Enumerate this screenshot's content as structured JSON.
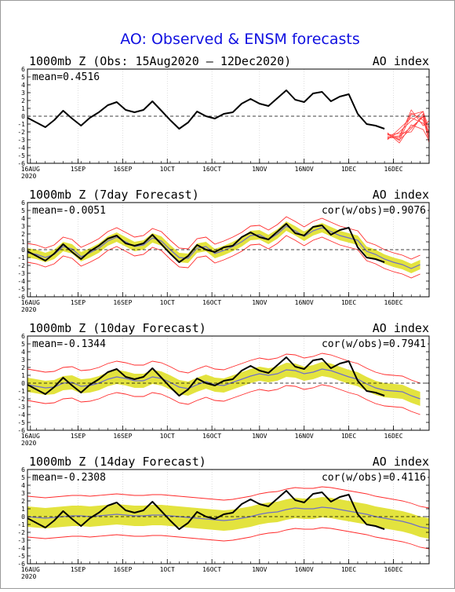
{
  "title": "AO: Observed & ENSM forecasts",
  "chart_data": [
    {
      "type": "line",
      "panel_title": "1000mb Z (Obs: 15Aug2020 – 12Dec2020)",
      "index_label": "AO index",
      "mean_label": "mean=0.4516",
      "cor_label": "",
      "yticks": [
        6,
        5,
        4,
        3,
        2,
        1,
        0,
        -1,
        -2,
        -3,
        -4,
        -5,
        -6
      ],
      "ylim": [
        -6,
        6
      ],
      "xlim_day": [
        0,
        135
      ],
      "xtick_labels": [
        "16AUG",
        "1SEP",
        "16SEP",
        "1OCT",
        "16OCT",
        "1NOV",
        "16NOV",
        "1DEC",
        "16DEC"
      ],
      "xtick_days": [
        1,
        17,
        32,
        47,
        62,
        78,
        93,
        108,
        123
      ],
      "year_label": "2020",
      "obs_x": [
        0,
        3,
        6,
        9,
        12,
        15,
        18,
        21,
        24,
        27,
        30,
        33,
        36,
        39,
        42,
        45,
        48,
        51,
        54,
        57,
        60,
        63,
        66,
        69,
        72,
        75,
        78,
        81,
        84,
        87,
        90,
        93,
        96,
        99,
        102,
        105,
        108,
        111,
        114,
        117,
        120
      ],
      "obs_y": [
        -0.2,
        -0.8,
        -1.4,
        -0.5,
        0.7,
        -0.3,
        -1.2,
        -0.2,
        0.5,
        1.4,
        1.8,
        0.8,
        0.5,
        0.8,
        1.9,
        0.7,
        -0.5,
        -1.6,
        -0.8,
        0.6,
        0.0,
        -0.3,
        0.3,
        0.5,
        1.6,
        2.2,
        1.6,
        1.3,
        2.3,
        3.3,
        2.1,
        1.8,
        2.9,
        3.1,
        1.9,
        2.5,
        2.8,
        0.3,
        -1.0,
        -1.2,
        -1.6
      ],
      "forecast_members": [
        {
          "x": [
            121,
            125,
            129,
            133,
            135
          ],
          "y": [
            -2.3,
            -3.0,
            -1.6,
            0.0,
            -2.2
          ]
        },
        {
          "x": [
            121,
            125,
            129,
            133,
            135
          ],
          "y": [
            -2.6,
            -2.5,
            0.4,
            -0.5,
            -2.7
          ]
        },
        {
          "x": [
            121,
            125,
            129,
            133,
            135
          ],
          "y": [
            -2.9,
            -2.0,
            -0.6,
            0.6,
            -1.6
          ]
        },
        {
          "x": [
            121,
            125,
            129,
            133,
            135
          ],
          "y": [
            -2.1,
            -3.4,
            -1.1,
            -1.7,
            -3.1
          ]
        },
        {
          "x": [
            121,
            125,
            129,
            133,
            135
          ],
          "y": [
            -2.7,
            -2.8,
            0.8,
            -1.2,
            -0.6
          ]
        },
        {
          "x": [
            121,
            125,
            129,
            133,
            135
          ],
          "y": [
            -2.4,
            -2.2,
            -2.0,
            0.3,
            -2.9
          ]
        },
        {
          "x": [
            121,
            125,
            129,
            133,
            135
          ],
          "y": [
            -3.0,
            -1.6,
            -0.2,
            -0.9,
            -1.9
          ]
        },
        {
          "x": [
            121,
            125,
            129,
            133,
            135
          ],
          "y": [
            -2.2,
            -3.1,
            0.2,
            0.6,
            -2.4
          ]
        },
        {
          "x": [
            121,
            125,
            129,
            133,
            135
          ],
          "y": [
            -2.8,
            -2.6,
            -1.4,
            -0.1,
            -3.4
          ]
        }
      ]
    },
    {
      "type": "line",
      "panel_title": "1000mb Z (7day Forecast)",
      "index_label": "AO index",
      "mean_label": "mean=-0.0051",
      "cor_label": "cor(w/obs)=0.9076",
      "yticks": [
        6,
        5,
        4,
        3,
        2,
        1,
        0,
        -1,
        -2,
        -3,
        -4,
        -5,
        -6
      ],
      "ylim": [
        -6,
        6
      ],
      "xlim_day": [
        0,
        135
      ],
      "xtick_labels": [
        "16AUG",
        "1SEP",
        "16SEP",
        "1OCT",
        "16OCT",
        "1NOV",
        "16NOV",
        "1DEC",
        "16DEC"
      ],
      "xtick_days": [
        1,
        17,
        32,
        47,
        62,
        78,
        93,
        108,
        123
      ],
      "year_label": "2020",
      "obs_x": [
        0,
        3,
        6,
        9,
        12,
        15,
        18,
        21,
        24,
        27,
        30,
        33,
        36,
        39,
        42,
        45,
        48,
        51,
        54,
        57,
        60,
        63,
        66,
        69,
        72,
        75,
        78,
        81,
        84,
        87,
        90,
        93,
        96,
        99,
        102,
        105,
        108,
        111,
        114,
        117,
        120
      ],
      "obs_y": [
        -0.2,
        -0.8,
        -1.4,
        -0.5,
        0.7,
        -0.3,
        -1.2,
        -0.2,
        0.5,
        1.4,
        1.8,
        0.8,
        0.5,
        0.8,
        1.9,
        0.7,
        -0.5,
        -1.6,
        -0.8,
        0.6,
        0.0,
        -0.3,
        0.3,
        0.5,
        1.6,
        2.2,
        1.6,
        1.3,
        2.3,
        3.3,
        2.1,
        1.8,
        2.9,
        3.1,
        1.9,
        2.5,
        2.8,
        0.3,
        -1.0,
        -1.2,
        -1.6
      ],
      "ensm_x": [
        0,
        3,
        6,
        9,
        12,
        15,
        18,
        21,
        24,
        27,
        30,
        33,
        36,
        39,
        42,
        45,
        48,
        51,
        54,
        57,
        60,
        63,
        66,
        69,
        72,
        75,
        78,
        81,
        84,
        87,
        90,
        93,
        96,
        99,
        102,
        105,
        108,
        111,
        114,
        117,
        120,
        123,
        126,
        129,
        132
      ],
      "ensm_y": [
        -0.4,
        -0.6,
        -1.0,
        -0.6,
        0.4,
        0.1,
        -0.9,
        -0.4,
        0.2,
        1.1,
        1.6,
        1.0,
        0.4,
        0.6,
        1.5,
        1.1,
        0.0,
        -1.0,
        -1.1,
        0.2,
        0.4,
        -0.5,
        -0.1,
        0.4,
        1.0,
        1.8,
        1.9,
        1.3,
        2.0,
        3.0,
        2.4,
        1.7,
        2.4,
        2.8,
        2.3,
        1.8,
        1.5,
        1.2,
        -0.2,
        -0.6,
        -1.2,
        -1.6,
        -1.9,
        -2.4,
        -1.9
      ],
      "spread": 0.6,
      "envelope": 1.2
    },
    {
      "type": "line",
      "panel_title": "1000mb Z (10day Forecast)",
      "index_label": "AO index",
      "mean_label": "mean=-0.1344",
      "cor_label": "cor(w/obs)=0.7941",
      "yticks": [
        6,
        5,
        4,
        3,
        2,
        1,
        0,
        -1,
        -2,
        -3,
        -4,
        -5,
        -6
      ],
      "ylim": [
        -6,
        6
      ],
      "xlim_day": [
        0,
        135
      ],
      "xtick_labels": [
        "16AUG",
        "1SEP",
        "16SEP",
        "1OCT",
        "16OCT",
        "1NOV",
        "16NOV",
        "1DEC",
        "16DEC"
      ],
      "xtick_days": [
        1,
        17,
        32,
        47,
        62,
        78,
        93,
        108,
        123
      ],
      "year_label": "2020",
      "obs_x": [
        0,
        3,
        6,
        9,
        12,
        15,
        18,
        21,
        24,
        27,
        30,
        33,
        36,
        39,
        42,
        45,
        48,
        51,
        54,
        57,
        60,
        63,
        66,
        69,
        72,
        75,
        78,
        81,
        84,
        87,
        90,
        93,
        96,
        99,
        102,
        105,
        108,
        111,
        114,
        117,
        120
      ],
      "obs_y": [
        -0.2,
        -0.8,
        -1.4,
        -0.5,
        0.7,
        -0.3,
        -1.2,
        -0.2,
        0.5,
        1.4,
        1.8,
        0.8,
        0.5,
        0.8,
        1.9,
        0.7,
        -0.5,
        -1.6,
        -0.8,
        0.6,
        0.0,
        -0.3,
        0.3,
        0.5,
        1.6,
        2.2,
        1.6,
        1.3,
        2.3,
        3.3,
        2.1,
        1.8,
        2.9,
        3.1,
        1.9,
        2.5,
        2.8,
        0.3,
        -1.0,
        -1.2,
        -1.6
      ],
      "ensm_x": [
        0,
        3,
        6,
        9,
        12,
        15,
        18,
        21,
        24,
        27,
        30,
        33,
        36,
        39,
        42,
        45,
        48,
        51,
        54,
        57,
        60,
        63,
        66,
        69,
        72,
        75,
        78,
        81,
        84,
        87,
        90,
        93,
        96,
        99,
        102,
        105,
        108,
        111,
        114,
        117,
        120,
        123,
        126,
        129,
        132
      ],
      "ensm_y": [
        -0.2,
        -0.4,
        -0.6,
        -0.5,
        0.0,
        0.1,
        -0.4,
        -0.3,
        0.0,
        0.5,
        0.8,
        0.6,
        0.3,
        0.3,
        0.8,
        0.6,
        0.1,
        -0.5,
        -0.7,
        -0.2,
        0.2,
        -0.2,
        -0.3,
        0.1,
        0.5,
        0.9,
        1.2,
        1.0,
        1.2,
        1.7,
        1.6,
        1.2,
        1.4,
        1.8,
        1.6,
        1.2,
        0.8,
        0.5,
        -0.1,
        -0.6,
        -0.9,
        -1.0,
        -1.1,
        -1.6,
        -2.0
      ],
      "spread": 0.9,
      "envelope": 2.0
    },
    {
      "type": "line",
      "panel_title": "1000mb Z (14day Forecast)",
      "index_label": "AO index",
      "mean_label": "mean=-0.2308",
      "cor_label": "cor(w/obs)=0.4116",
      "yticks": [
        6,
        5,
        4,
        3,
        2,
        1,
        0,
        -1,
        -2,
        -3,
        -4,
        -5,
        -6
      ],
      "ylim": [
        -6,
        6
      ],
      "xlim_day": [
        0,
        135
      ],
      "xtick_labels": [
        "16AUG",
        "1SEP",
        "16SEP",
        "1OCT",
        "16OCT",
        "1NOV",
        "16NOV",
        "1DEC",
        "16DEC"
      ],
      "xtick_days": [
        1,
        17,
        32,
        47,
        62,
        78,
        93,
        108,
        123
      ],
      "year_label": "2020",
      "obs_x": [
        0,
        3,
        6,
        9,
        12,
        15,
        18,
        21,
        24,
        27,
        30,
        33,
        36,
        39,
        42,
        45,
        48,
        51,
        54,
        57,
        60,
        63,
        66,
        69,
        72,
        75,
        78,
        81,
        84,
        87,
        90,
        93,
        96,
        99,
        102,
        105,
        108,
        111,
        114,
        117,
        120
      ],
      "obs_y": [
        -0.2,
        -0.8,
        -1.4,
        -0.5,
        0.7,
        -0.3,
        -1.2,
        -0.2,
        0.5,
        1.4,
        1.8,
        0.8,
        0.5,
        0.8,
        1.9,
        0.7,
        -0.5,
        -1.6,
        -0.8,
        0.6,
        0.0,
        -0.3,
        0.3,
        0.5,
        1.6,
        2.2,
        1.6,
        1.3,
        2.3,
        3.3,
        2.1,
        1.8,
        2.9,
        3.1,
        1.9,
        2.5,
        2.8,
        0.3,
        -1.0,
        -1.2,
        -1.6
      ],
      "ensm_x": [
        0,
        3,
        6,
        9,
        12,
        15,
        18,
        21,
        24,
        27,
        30,
        33,
        36,
        39,
        42,
        45,
        48,
        51,
        54,
        57,
        60,
        63,
        66,
        69,
        72,
        75,
        78,
        81,
        84,
        87,
        90,
        93,
        96,
        99,
        102,
        105,
        108,
        111,
        114,
        117,
        120,
        123,
        126,
        129,
        132,
        135
      ],
      "ensm_y": [
        0.0,
        -0.1,
        -0.2,
        -0.1,
        0.0,
        0.1,
        0.1,
        0.0,
        0.1,
        0.2,
        0.3,
        0.2,
        0.1,
        0.1,
        0.2,
        0.2,
        0.1,
        0.0,
        -0.1,
        -0.2,
        -0.3,
        -0.4,
        -0.5,
        -0.4,
        -0.2,
        0.0,
        0.3,
        0.5,
        0.6,
        0.9,
        1.1,
        1.0,
        1.0,
        1.2,
        1.1,
        0.9,
        0.7,
        0.5,
        0.3,
        0.0,
        -0.2,
        -0.4,
        -0.6,
        -0.9,
        -1.3,
        -1.5
      ],
      "spread": 1.3,
      "envelope": 2.6
    }
  ]
}
